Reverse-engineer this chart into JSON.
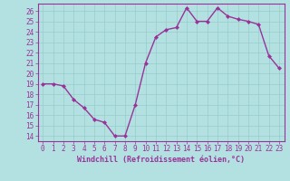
{
  "x": [
    0,
    1,
    2,
    3,
    4,
    5,
    6,
    7,
    8,
    9,
    10,
    11,
    12,
    13,
    14,
    15,
    16,
    17,
    18,
    19,
    20,
    21,
    22,
    23
  ],
  "y": [
    19.0,
    19.0,
    18.8,
    17.5,
    16.7,
    15.6,
    15.3,
    14.0,
    14.0,
    17.0,
    21.0,
    23.5,
    24.2,
    24.4,
    26.3,
    25.0,
    25.0,
    26.3,
    25.5,
    25.2,
    25.0,
    24.7,
    21.7,
    20.5
  ],
  "xlabel": "Windchill (Refroidissement éolien,°C)",
  "line_color": "#993399",
  "marker": "D",
  "marker_size": 2.0,
  "bg_color": "#b3e0e0",
  "grid_color": "#99cccc",
  "xlim": [
    -0.5,
    23.5
  ],
  "ylim": [
    13.5,
    26.7
  ],
  "yticks": [
    14,
    15,
    16,
    17,
    18,
    19,
    20,
    21,
    22,
    23,
    24,
    25,
    26
  ],
  "xticks": [
    0,
    1,
    2,
    3,
    4,
    5,
    6,
    7,
    8,
    9,
    10,
    11,
    12,
    13,
    14,
    15,
    16,
    17,
    18,
    19,
    20,
    21,
    22,
    23
  ],
  "spine_color": "#993399",
  "tick_color": "#993399",
  "label_color": "#993399",
  "line_width": 1.0,
  "xlabel_fontsize": 6.0,
  "tick_fontsize": 5.5
}
